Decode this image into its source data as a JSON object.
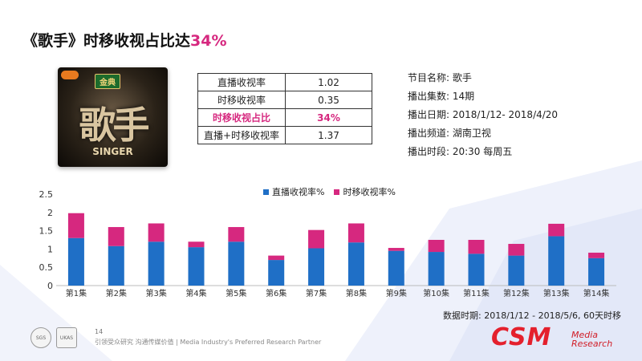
{
  "title": {
    "main": "《歌手》时移收视占比达",
    "highlight": "34%"
  },
  "poster": {
    "badge": "金典",
    "logo": "歌手",
    "sub": "SINGER"
  },
  "stats_table": [
    {
      "label": "直播收视率",
      "value": "1.02",
      "highlight": false
    },
    {
      "label": "时移收视率",
      "value": "0.35",
      "highlight": false
    },
    {
      "label": "时移收视占比",
      "value": "34%",
      "highlight": true
    },
    {
      "label": "直播+时移收视率",
      "value": "1.37",
      "highlight": false
    }
  ],
  "program_info": [
    "节目名称:  歌手",
    "播出集数:  14期",
    "播出日期:    2018/1/12- 2018/4/20",
    "播出频道:  湖南卫视",
    "播出时段:  20:30 每周五"
  ],
  "chart_data": {
    "type": "bar",
    "stacked": true,
    "categories": [
      "第1集",
      "第2集",
      "第3集",
      "第4集",
      "第5集",
      "第6集",
      "第7集",
      "第8集",
      "第9集",
      "第10集",
      "第11集",
      "第12集",
      "第13集",
      "第14集"
    ],
    "series": [
      {
        "name": "直播收视率%",
        "color": "#1f6fc6",
        "values": [
          1.3,
          1.08,
          1.2,
          1.05,
          1.2,
          0.7,
          1.02,
          1.18,
          0.95,
          0.92,
          0.87,
          0.82,
          1.35,
          0.75
        ]
      },
      {
        "name": "时移收视率%",
        "color": "#d6287f",
        "values": [
          0.68,
          0.52,
          0.5,
          0.15,
          0.4,
          0.12,
          0.5,
          0.52,
          0.08,
          0.33,
          0.38,
          0.32,
          0.34,
          0.15
        ]
      }
    ],
    "yticks": [
      "0",
      "0.5",
      "1",
      "1.5",
      "2",
      "2.5"
    ],
    "ylim": [
      0,
      2.5
    ],
    "legend_position": "top-center",
    "grid": false,
    "title": "",
    "xlabel": "",
    "ylabel": ""
  },
  "footnote": "数据时期:  2018/1/12 - 2018/5/6, 60天时移",
  "page_number": "14",
  "tagline": "引领受众研究 沟通传媒价值 | Media Industry's Preferred Research Partner",
  "certs": [
    "SGS",
    "UKAS"
  ],
  "brand": {
    "logo": "CSM",
    "sub_line1": "Media",
    "sub_line2": "Research"
  },
  "colors": {
    "accent": "#d6287f",
    "brand": "#e4202d",
    "bar_live": "#1f6fc6",
    "bar_timeshift": "#d6287f"
  }
}
